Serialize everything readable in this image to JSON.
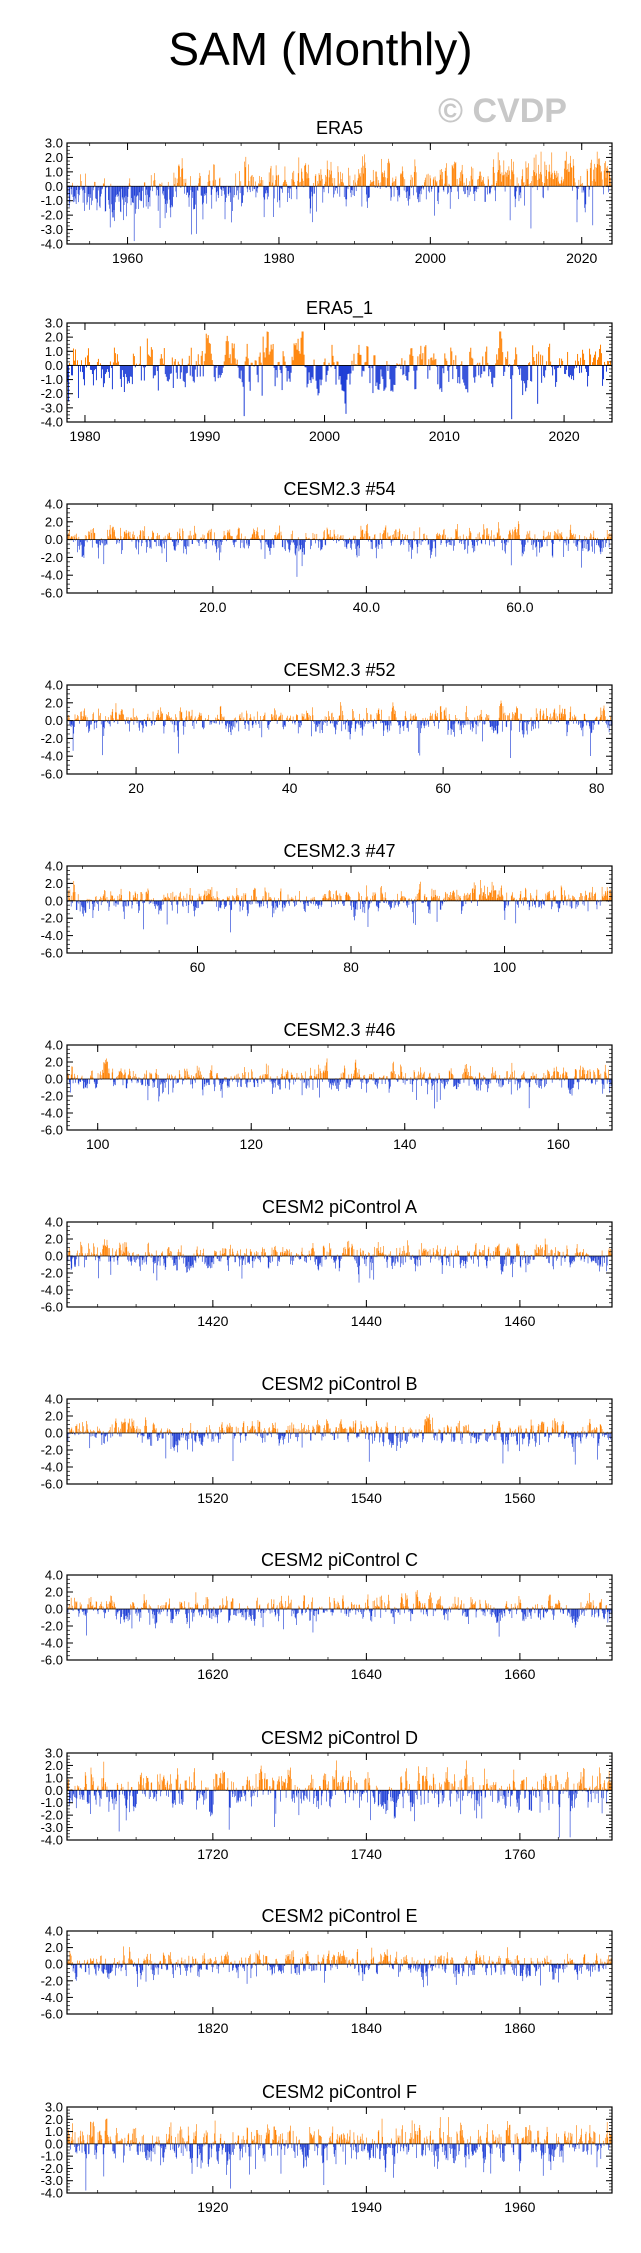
{
  "title": "SAM (Monthly)",
  "watermark": "© CVDP",
  "colors": {
    "positive": "#ff8000",
    "negative": "#1f3fd6",
    "frame": "#000000"
  },
  "chart_data": [
    {
      "type": "bar",
      "title": "ERA5",
      "xlim": [
        1952,
        2024
      ],
      "ylim": [
        -4,
        3
      ],
      "yticks": [
        3,
        2,
        1,
        0,
        -1,
        -2,
        -3,
        -4
      ],
      "ytick_labels": [
        "3.0",
        "2.0",
        "1.0",
        "0.0",
        "-1.0",
        "-2.0",
        "-3.0",
        "-4.0"
      ],
      "xticks": [
        1960,
        1980,
        2000,
        2020
      ],
      "xtick_labels": [
        "1960",
        "1980",
        "2000",
        "2020"
      ],
      "trend": [
        [
          1952,
          -0.5
        ],
        [
          1970,
          -0.2
        ],
        [
          1985,
          0.2
        ],
        [
          2000,
          0.4
        ],
        [
          2024,
          0.6
        ]
      ],
      "amp": 0.9,
      "seed": 11
    },
    {
      "type": "bar",
      "title": "ERA5_1",
      "xlim": [
        1978.5,
        2024
      ],
      "ylim": [
        -4,
        3
      ],
      "yticks": [
        3,
        2,
        1,
        0,
        -1,
        -2,
        -3,
        -4
      ],
      "ytick_labels": [
        "3.0",
        "2.0",
        "1.0",
        "0.0",
        "-1.0",
        "-2.0",
        "-3.0",
        "-4.0"
      ],
      "xticks": [
        1980,
        1990,
        2000,
        2010,
        2020
      ],
      "xtick_labels": [
        "1980",
        "1990",
        "2000",
        "2010",
        "2020"
      ],
      "trend": [],
      "amp": 1.0,
      "seed": 23
    },
    {
      "type": "bar",
      "title": "CESM2.3 #54",
      "xlim": [
        1,
        72
      ],
      "ylim": [
        -6,
        4
      ],
      "yticks": [
        4,
        2,
        0,
        -2,
        -4,
        -6
      ],
      "ytick_labels": [
        "4.0",
        "2.0",
        "0.0",
        "-2.0",
        "-4.0",
        "-6.0"
      ],
      "xticks": [
        20,
        40,
        60
      ],
      "xtick_labels": [
        "20.0",
        "40.0",
        "60.0"
      ],
      "trend": [],
      "amp": 0.85,
      "seed": 37
    },
    {
      "type": "bar",
      "title": "CESM2.3 #52",
      "xlim": [
        11,
        82
      ],
      "ylim": [
        -6,
        4
      ],
      "yticks": [
        4,
        2,
        0,
        -2,
        -4,
        -6
      ],
      "ytick_labels": [
        "4.0",
        "2.0",
        "0.0",
        "-2.0",
        "-4.0",
        "-6.0"
      ],
      "xticks": [
        20,
        40,
        60,
        80
      ],
      "xtick_labels": [
        "20",
        "40",
        "60",
        "80"
      ],
      "trend": [],
      "amp": 0.85,
      "seed": 41
    },
    {
      "type": "bar",
      "title": "CESM2.3 #47",
      "xlim": [
        43,
        114
      ],
      "ylim": [
        -6,
        4
      ],
      "yticks": [
        4,
        2,
        0,
        -2,
        -4,
        -6
      ],
      "ytick_labels": [
        "4.0",
        "2.0",
        "0.0",
        "-2.0",
        "-4.0",
        "-6.0"
      ],
      "xticks": [
        60,
        80,
        100
      ],
      "xtick_labels": [
        "60",
        "80",
        "100"
      ],
      "trend": [],
      "amp": 0.85,
      "seed": 53
    },
    {
      "type": "bar",
      "title": "CESM2.3 #46",
      "xlim": [
        96,
        167
      ],
      "ylim": [
        -6,
        4
      ],
      "yticks": [
        4,
        2,
        0,
        -2,
        -4,
        -6
      ],
      "ytick_labels": [
        "4.0",
        "2.0",
        "0.0",
        "-2.0",
        "-4.0",
        "-6.0"
      ],
      "xticks": [
        100,
        120,
        140,
        160
      ],
      "xtick_labels": [
        "100",
        "120",
        "140",
        "160"
      ],
      "trend": [],
      "amp": 0.85,
      "seed": 67
    },
    {
      "type": "bar",
      "title": "CESM2 piControl A",
      "xlim": [
        1401,
        1472
      ],
      "ylim": [
        -6,
        4
      ],
      "yticks": [
        4,
        2,
        0,
        -2,
        -4,
        -6
      ],
      "ytick_labels": [
        "4.0",
        "2.0",
        "0.0",
        "-2.0",
        "-4.0",
        "-6.0"
      ],
      "xticks": [
        1420,
        1440,
        1460
      ],
      "xtick_labels": [
        "1420",
        "1440",
        "1460"
      ],
      "trend": [],
      "amp": 0.85,
      "seed": 71
    },
    {
      "type": "bar",
      "title": "CESM2 piControl B",
      "xlim": [
        1501,
        1572
      ],
      "ylim": [
        -6,
        4
      ],
      "yticks": [
        4,
        2,
        0,
        -2,
        -4,
        -6
      ],
      "ytick_labels": [
        "4.0",
        "2.0",
        "0.0",
        "-2.0",
        "-4.0",
        "-6.0"
      ],
      "xticks": [
        1520,
        1540,
        1560
      ],
      "xtick_labels": [
        "1520",
        "1540",
        "1560"
      ],
      "trend": [],
      "amp": 0.85,
      "seed": 83
    },
    {
      "type": "bar",
      "title": "CESM2 piControl C",
      "xlim": [
        1601,
        1672
      ],
      "ylim": [
        -6,
        4
      ],
      "yticks": [
        4,
        2,
        0,
        -2,
        -4,
        -6
      ],
      "ytick_labels": [
        "4.0",
        "2.0",
        "0.0",
        "-2.0",
        "-4.0",
        "-6.0"
      ],
      "xticks": [
        1620,
        1640,
        1660
      ],
      "xtick_labels": [
        "1620",
        "1640",
        "1660"
      ],
      "trend": [],
      "amp": 0.85,
      "seed": 97
    },
    {
      "type": "bar",
      "title": "CESM2 piControl D",
      "xlim": [
        1701,
        1772
      ],
      "ylim": [
        -4,
        3
      ],
      "yticks": [
        3,
        2,
        1,
        0,
        -1,
        -2,
        -3,
        -4
      ],
      "ytick_labels": [
        "3.0",
        "2.0",
        "1.0",
        "0.0",
        "-1.0",
        "-2.0",
        "-3.0",
        "-4.0"
      ],
      "xticks": [
        1720,
        1740,
        1760
      ],
      "xtick_labels": [
        "1720",
        "1740",
        "1760"
      ],
      "trend": [],
      "amp": 0.95,
      "seed": 101
    },
    {
      "type": "bar",
      "title": "CESM2 piControl E",
      "xlim": [
        1801,
        1872
      ],
      "ylim": [
        -6,
        4
      ],
      "yticks": [
        4,
        2,
        0,
        -2,
        -4,
        -6
      ],
      "ytick_labels": [
        "4.0",
        "2.0",
        "0.0",
        "-2.0",
        "-4.0",
        "-6.0"
      ],
      "xticks": [
        1820,
        1840,
        1860
      ],
      "xtick_labels": [
        "1820",
        "1840",
        "1860"
      ],
      "trend": [],
      "amp": 0.85,
      "seed": 113
    },
    {
      "type": "bar",
      "title": "CESM2 piControl F",
      "xlim": [
        1901,
        1972
      ],
      "ylim": [
        -4,
        3
      ],
      "yticks": [
        3,
        2,
        1,
        0,
        -1,
        -2,
        -3,
        -4
      ],
      "ytick_labels": [
        "3.0",
        "2.0",
        "1.0",
        "0.0",
        "-1.0",
        "-2.0",
        "-3.0",
        "-4.0"
      ],
      "xticks": [
        1920,
        1940,
        1960
      ],
      "xtick_labels": [
        "1920",
        "1940",
        "1960"
      ],
      "trend": [],
      "amp": 0.95,
      "seed": 127
    }
  ]
}
